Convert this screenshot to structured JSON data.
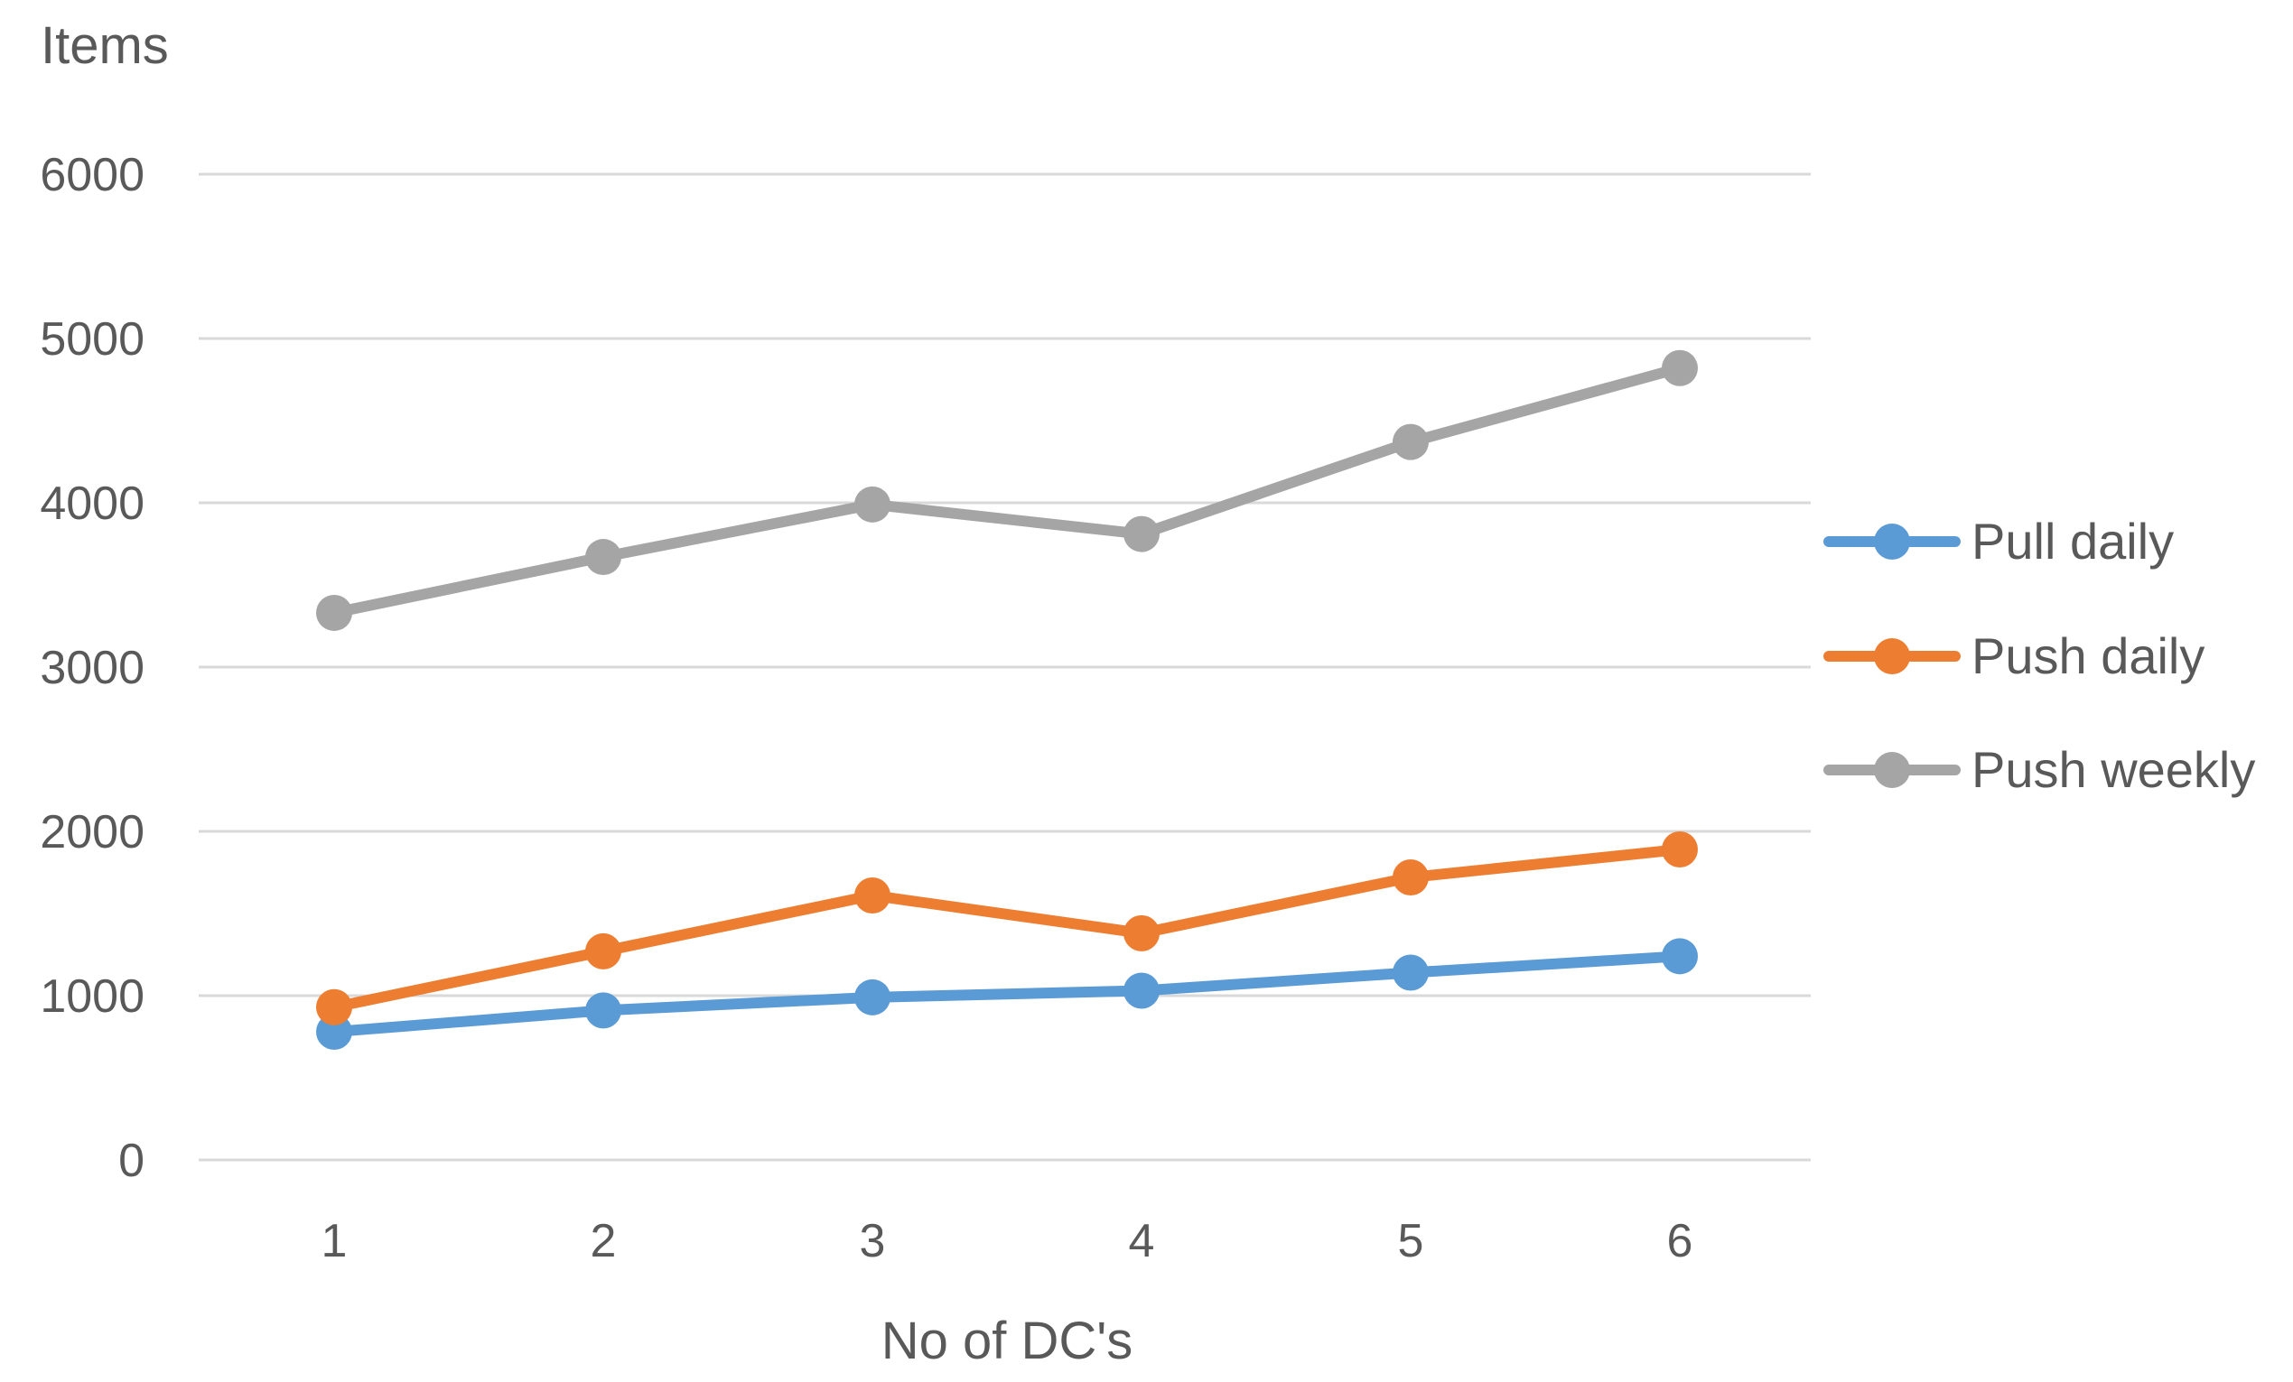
{
  "chart_data": {
    "type": "line",
    "title": "",
    "xlabel": "No of DC's",
    "ylabel": "Items",
    "categories": [
      "1",
      "2",
      "3",
      "4",
      "5",
      "6"
    ],
    "ylim": [
      0,
      6000
    ],
    "yticks": [
      "0",
      "1000",
      "2000",
      "3000",
      "4000",
      "5000",
      "6000"
    ],
    "grid": true,
    "legend_position": "right",
    "series": [
      {
        "name": "Pull daily",
        "color": "#5b9bd5",
        "values": [
          780,
          910,
          990,
          1030,
          1140,
          1240
        ]
      },
      {
        "name": "Push daily",
        "color": "#ed7d31",
        "values": [
          930,
          1270,
          1610,
          1380,
          1720,
          1890
        ]
      },
      {
        "name": "Push weekly",
        "color": "#a5a5a5",
        "values": [
          3330,
          3670,
          3990,
          3810,
          4370,
          4820
        ]
      }
    ]
  }
}
